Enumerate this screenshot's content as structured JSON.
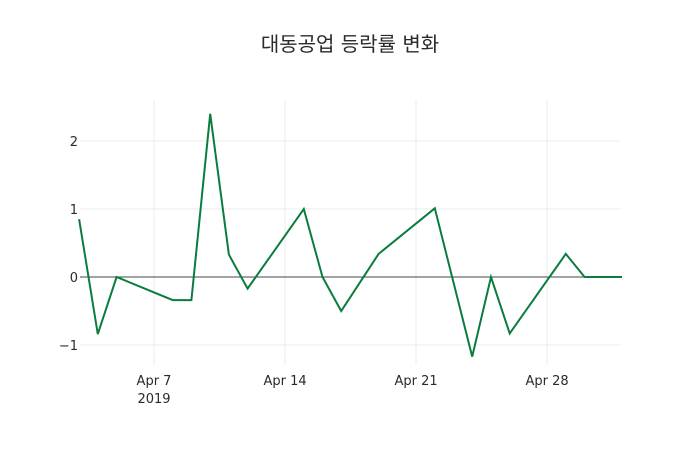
{
  "chart_data": {
    "type": "line",
    "title": "대동공업 등락률 변화",
    "xlabel": "",
    "ylabel": "",
    "grid": true,
    "legend": "none",
    "line_color": "#0a7d3e",
    "x_ticks": [
      {
        "label": "Apr 7",
        "sublabel": "2019",
        "date": "2019-04-07"
      },
      {
        "label": "Apr 14",
        "sublabel": "",
        "date": "2019-04-14"
      },
      {
        "label": "Apr 21",
        "sublabel": "",
        "date": "2019-04-21"
      },
      {
        "label": "Apr 28",
        "sublabel": "",
        "date": "2019-04-28"
      }
    ],
    "y_ticks": [
      {
        "label": "2",
        "value": 2
      },
      {
        "label": "1",
        "value": 1
      },
      {
        "label": "0",
        "value": 0
      },
      {
        "label": "−1",
        "value": -1
      }
    ],
    "ylim": [
      -1.35,
      2.6
    ],
    "xlim": [
      "2019-04-03",
      "2019-05-02"
    ],
    "series": [
      {
        "name": "등락률",
        "x": [
          "2019-04-03",
          "2019-04-04",
          "2019-04-05",
          "2019-04-08",
          "2019-04-09",
          "2019-04-10",
          "2019-04-11",
          "2019-04-12",
          "2019-04-15",
          "2019-04-16",
          "2019-04-17",
          "2019-04-19",
          "2019-04-22",
          "2019-04-24",
          "2019-04-25",
          "2019-04-26",
          "2019-04-29",
          "2019-04-30",
          "2019-05-02"
        ],
        "values": [
          0.85,
          -0.84,
          0.0,
          -0.34,
          -0.34,
          2.4,
          0.33,
          -0.17,
          1.0,
          0.0,
          -0.5,
          0.34,
          1.01,
          -1.17,
          0.0,
          -0.83,
          0.34,
          0.0,
          0.0
        ]
      }
    ]
  }
}
